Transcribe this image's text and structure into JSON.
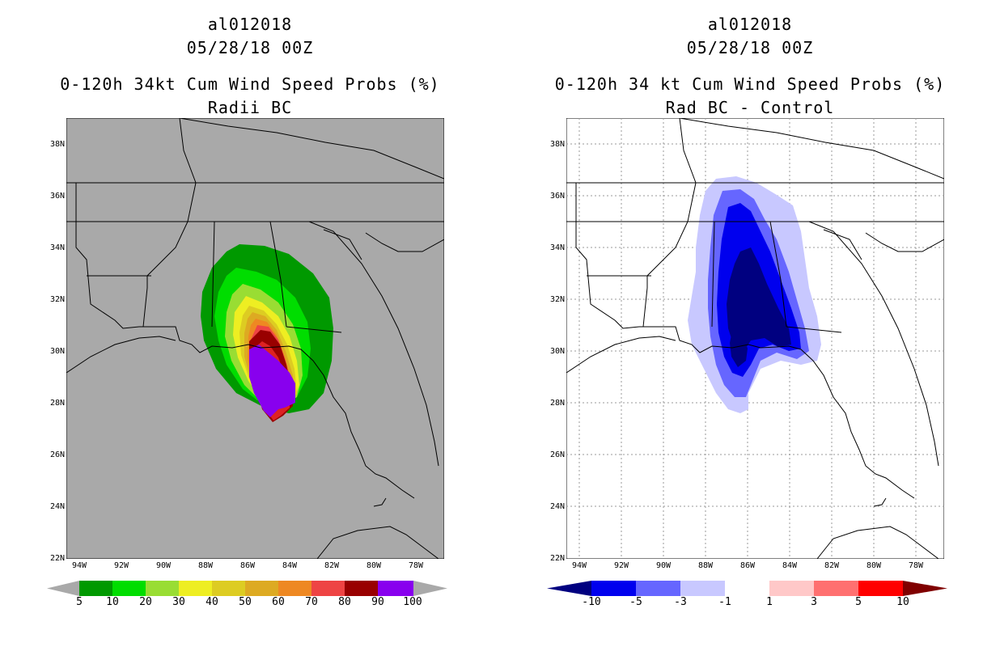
{
  "left_panel": {
    "storm_id": "al012018",
    "datetime": "05/28/18 00Z",
    "title": "0-120h 34kt Cum Wind Speed Probs (%)",
    "subtitle": "Radii BC",
    "background_color": "#a9a9a9",
    "colorbar": {
      "colors": [
        "#009900",
        "#00dd00",
        "#99dd33",
        "#eeee22",
        "#ddcc22",
        "#ddaa22",
        "#ee8822",
        "#ee4444",
        "#990000",
        "#8800ee"
      ],
      "labels": [
        "5",
        "10",
        "20",
        "30",
        "40",
        "50",
        "60",
        "70",
        "80",
        "90",
        "100"
      ]
    }
  },
  "right_panel": {
    "storm_id": "al012018",
    "datetime": "05/28/18 00Z",
    "title": "0-120h 34 kt Cum Wind Speed Probs (%)",
    "subtitle": "Rad BC - Control",
    "background_color": "#ffffff",
    "colorbar": {
      "colors": [
        "#0000ee",
        "#6666ff",
        "#c8c8ff",
        "#ffffff",
        "#ffc8c8",
        "#ff7070",
        "#ff0000"
      ],
      "end_low": "#000080",
      "end_high": "#800000",
      "labels": [
        "-10",
        "-5",
        "-3",
        "-1",
        "1",
        "3",
        "5",
        "10"
      ]
    }
  },
  "axes": {
    "lat_labels": [
      "38N",
      "36N",
      "34N",
      "32N",
      "30N",
      "28N",
      "26N",
      "24N",
      "22N"
    ],
    "lon_labels": [
      "94W",
      "92W",
      "90W",
      "88W",
      "86W",
      "84W",
      "82W",
      "80W",
      "78W"
    ]
  }
}
